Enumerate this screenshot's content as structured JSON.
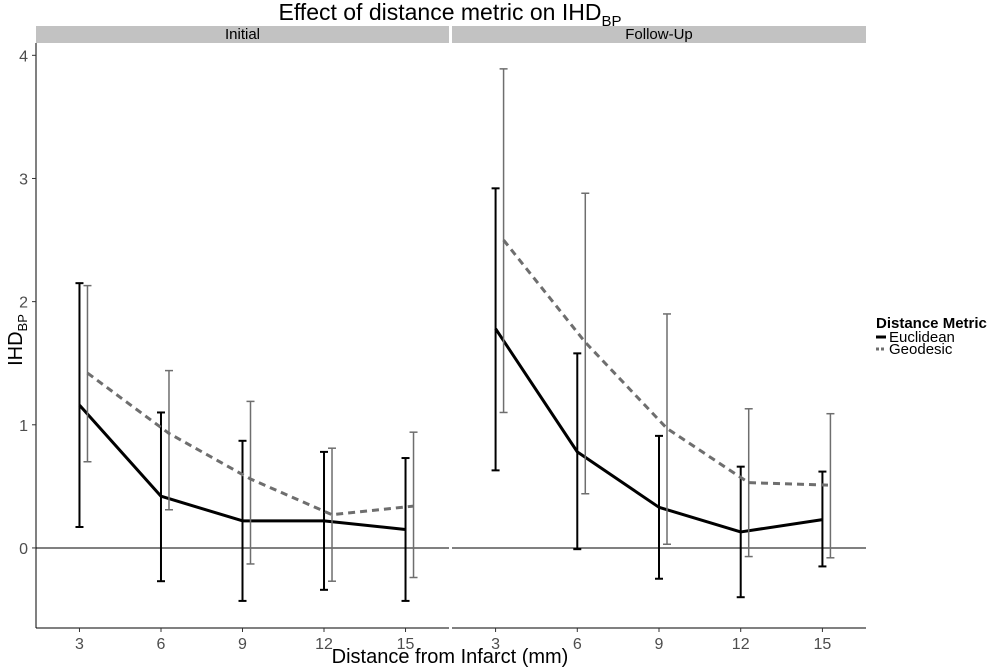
{
  "chart_data": {
    "type": "line",
    "title": "Effect of distance metric on IHD",
    "title_subscript": "BP",
    "xlabel": "Distance from Infarct (mm)",
    "ylabel": "IHD",
    "ylabel_subscript": "BP",
    "x_ticks": [
      3,
      6,
      9,
      12,
      15
    ],
    "y_ticks": [
      0,
      1,
      2,
      3,
      4
    ],
    "xlim": [
      1.4,
      16.6
    ],
    "ylim": [
      -0.65,
      4.1
    ],
    "grid": false,
    "reference_line_y": 0,
    "legend": {
      "title": "Distance Metric",
      "position": "right"
    },
    "panels": [
      {
        "label": "Initial",
        "series": [
          {
            "name": "Euclidean",
            "color": "#000000",
            "dashed": false,
            "x": [
              3,
              6,
              9,
              12,
              15
            ],
            "values": [
              1.16,
              0.42,
              0.22,
              0.22,
              0.15
            ],
            "error_low": [
              0.17,
              -0.27,
              -0.43,
              -0.34,
              -0.43
            ],
            "error_high": [
              2.15,
              1.1,
              0.87,
              0.78,
              0.73
            ]
          },
          {
            "name": "Geodesic",
            "color": "#6e6e6e",
            "dashed": true,
            "x": [
              3,
              6,
              9,
              12,
              15
            ],
            "values": [
              1.42,
              0.93,
              0.56,
              0.27,
              0.34
            ],
            "error_low": [
              0.7,
              0.31,
              -0.13,
              -0.27,
              -0.24
            ],
            "error_high": [
              2.13,
              1.44,
              1.19,
              0.81,
              0.94
            ]
          }
        ]
      },
      {
        "label": "Follow-Up",
        "series": [
          {
            "name": "Euclidean",
            "color": "#000000",
            "dashed": false,
            "x": [
              3,
              6,
              9,
              12,
              15
            ],
            "values": [
              1.78,
              0.78,
              0.33,
              0.13,
              0.23
            ],
            "error_low": [
              0.63,
              -0.01,
              -0.25,
              -0.4,
              -0.15
            ],
            "error_high": [
              2.92,
              1.58,
              0.91,
              0.66,
              0.62
            ]
          },
          {
            "name": "Geodesic",
            "color": "#6e6e6e",
            "dashed": true,
            "x": [
              3,
              6,
              9,
              12,
              15
            ],
            "values": [
              2.5,
              1.67,
              0.97,
              0.53,
              0.51
            ],
            "error_low": [
              1.1,
              0.44,
              0.03,
              -0.07,
              -0.08
            ],
            "error_high": [
              3.89,
              2.88,
              1.9,
              1.13,
              1.09
            ]
          }
        ]
      }
    ]
  }
}
